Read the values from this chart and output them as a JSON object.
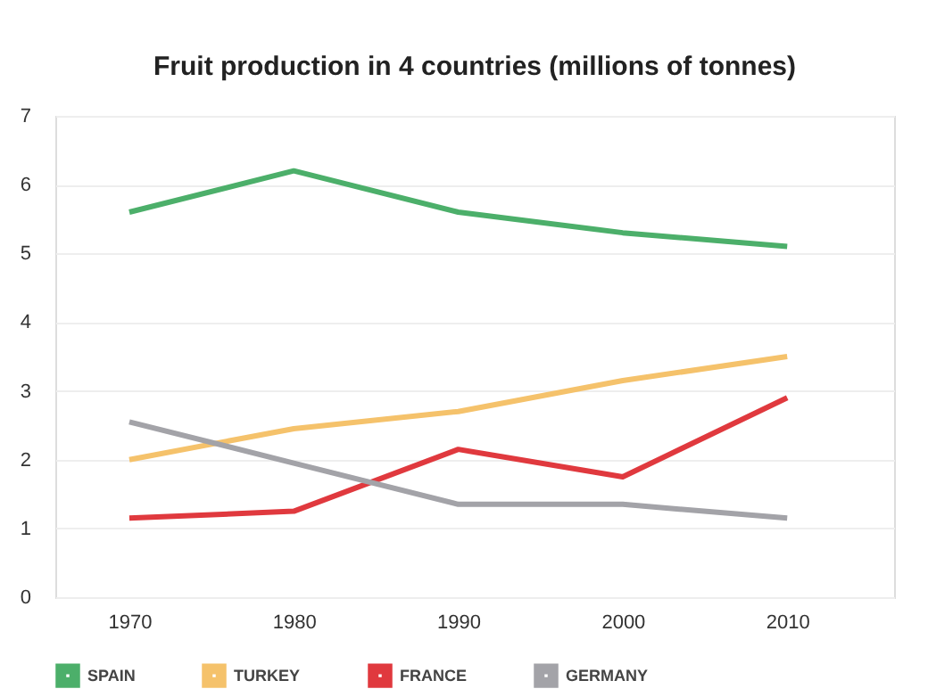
{
  "chart_data": {
    "type": "line",
    "title": "Fruit production in 4 countries (millions of tonnes)",
    "x": [
      1970,
      1980,
      1990,
      2000,
      2010
    ],
    "series": [
      {
        "name": "SPAIN",
        "color": "#4caf6a",
        "values": [
          5.6,
          6.2,
          5.6,
          5.3,
          5.1
        ]
      },
      {
        "name": "TURKEY",
        "color": "#f5c26b",
        "values": [
          2.0,
          2.45,
          2.7,
          3.15,
          3.5
        ]
      },
      {
        "name": "FRANCE",
        "color": "#e0393e",
        "values": [
          1.15,
          1.25,
          2.15,
          1.75,
          2.9
        ]
      },
      {
        "name": "GERMANY",
        "color": "#a3a3a8",
        "values": [
          2.55,
          1.95,
          1.35,
          1.35,
          1.15
        ]
      }
    ],
    "xlim": [
      1965.5,
      2016.5
    ],
    "xticks": [
      1970,
      1980,
      1990,
      2000,
      2010
    ],
    "ylim": [
      0,
      7
    ],
    "yticks": [
      0,
      1,
      2,
      3,
      4,
      5,
      6,
      7
    ],
    "grid": "y",
    "legend": "bottom",
    "marker": "none",
    "line_style": "solid"
  }
}
